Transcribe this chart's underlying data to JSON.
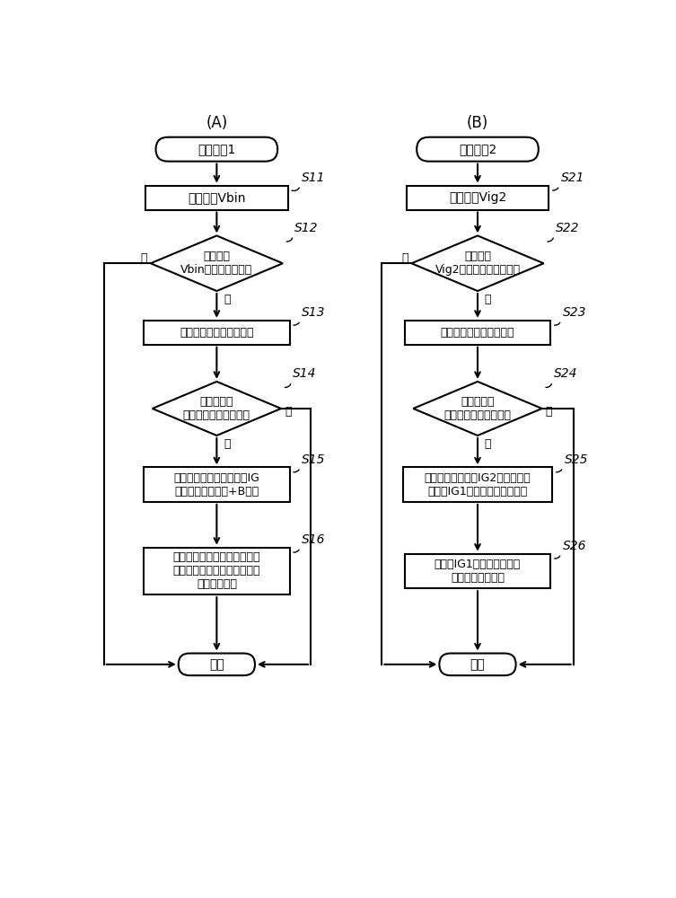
{
  "title_A": "(A)",
  "title_B": "(B)",
  "bg_color": "#ffffff",
  "flowA": {
    "start": "恢复控制1",
    "steps": [
      {
        "id": "S11",
        "type": "rect",
        "text": "监测电压Vbin"
      },
      {
        "id": "S12",
        "type": "diamond",
        "text": "是否根据\nVbin而检测到断开？"
      },
      {
        "id": "S13",
        "type": "rect",
        "text": "显示电源中的异常的发生"
      },
      {
        "id": "S14",
        "type": "diamond",
        "text": "是否检测到\n用于恢复许可的输入？"
      },
      {
        "id": "S15",
        "type": "rect",
        "text": "接通恢复开关以将电力从IG\n系统的输入供给至+B系统"
      },
      {
        "id": "S16",
        "type": "rect",
        "text": "控制电力消耗抑制开关以切断\n到各个系统中的优先级低的负\n载的电力供给"
      }
    ],
    "end": "结束",
    "labels": [
      "S11",
      "S12",
      "S13",
      "S14",
      "S15",
      "S16"
    ]
  },
  "flowB": {
    "start": "恢复控制2",
    "steps": [
      {
        "id": "S21",
        "type": "rect",
        "text": "监测电压Vig2"
      },
      {
        "id": "S22",
        "type": "diamond",
        "text": "是否根据\nVig2而检测到故障中断？"
      },
      {
        "id": "S23",
        "type": "rect",
        "text": "显示电源中的异常的发生"
      },
      {
        "id": "S24",
        "type": "diamond",
        "text": "是否检测到\n用于恢复许可的输入？"
      },
      {
        "id": "S25",
        "type": "rect",
        "text": "切换恢复开关以将IG2系统的输入\n切换为IG1系统的继电器的输出"
      },
      {
        "id": "S26",
        "type": "rect",
        "text": "切断到IG1系统中优先级低\n的负载的电力供给"
      }
    ],
    "end": "结束",
    "labels": [
      "S21",
      "S22",
      "S23",
      "S24",
      "S25",
      "S26"
    ]
  }
}
